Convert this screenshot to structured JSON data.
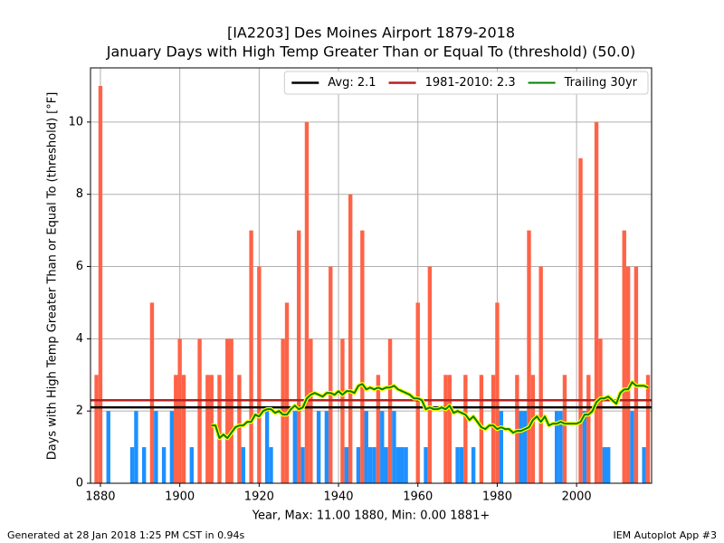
{
  "chart_data": {
    "type": "bar",
    "title": "[IA2203] Des Moines Airport 1879-2018",
    "subtitle": "January Days with High Temp Greater Than or Equal To (threshold) (50.0)",
    "x_label": "Year, Max: 11.00 1880, Min: 0.00 1881+",
    "y_label": "Days with High Temp Greater Than or Equal To (threshold) [°F]",
    "footer_left": "Generated at 28 Jan 2018 1:25 PM CST in 0.94s",
    "footer_right": "IEM Autoplot App #3",
    "x": [
      1879,
      1880,
      1881,
      1882,
      1883,
      1884,
      1885,
      1886,
      1887,
      1888,
      1889,
      1890,
      1891,
      1892,
      1893,
      1894,
      1895,
      1896,
      1897,
      1898,
      1899,
      1900,
      1901,
      1902,
      1903,
      1904,
      1905,
      1906,
      1907,
      1908,
      1909,
      1910,
      1911,
      1912,
      1913,
      1914,
      1915,
      1916,
      1917,
      1918,
      1919,
      1920,
      1921,
      1922,
      1923,
      1924,
      1925,
      1926,
      1927,
      1928,
      1929,
      1930,
      1931,
      1932,
      1933,
      1934,
      1935,
      1936,
      1937,
      1938,
      1939,
      1940,
      1941,
      1942,
      1943,
      1944,
      1945,
      1946,
      1947,
      1948,
      1949,
      1950,
      1951,
      1952,
      1953,
      1954,
      1955,
      1956,
      1957,
      1958,
      1959,
      1960,
      1961,
      1962,
      1963,
      1964,
      1965,
      1966,
      1967,
      1968,
      1969,
      1970,
      1971,
      1972,
      1973,
      1974,
      1975,
      1976,
      1977,
      1978,
      1979,
      1980,
      1981,
      1982,
      1983,
      1984,
      1985,
      1986,
      1987,
      1988,
      1989,
      1990,
      1991,
      1992,
      1993,
      1994,
      1995,
      1996,
      1997,
      1998,
      1999,
      2000,
      2001,
      2002,
      2003,
      2004,
      2005,
      2006,
      2007,
      2008,
      2009,
      2010,
      2011,
      2012,
      2013,
      2014,
      2015,
      2016,
      2017,
      2018
    ],
    "values": [
      3,
      11,
      0,
      2,
      0,
      0,
      0,
      0,
      0,
      1,
      2,
      0,
      1,
      0,
      5,
      2,
      0,
      1,
      0,
      2,
      3,
      4,
      3,
      0,
      1,
      0,
      4,
      0,
      3,
      3,
      0,
      3,
      0,
      4,
      4,
      0,
      3,
      1,
      0,
      7,
      0,
      6,
      0,
      2,
      1,
      0,
      0,
      4,
      5,
      0,
      2,
      7,
      1,
      10,
      4,
      0,
      2,
      0,
      2,
      6,
      0,
      0,
      4,
      1,
      8,
      0,
      1,
      7,
      2,
      1,
      1,
      3,
      2,
      1,
      4,
      2,
      1,
      1,
      1,
      0,
      0,
      5,
      0,
      1,
      6,
      0,
      0,
      0,
      3,
      3,
      0,
      1,
      1,
      3,
      0,
      1,
      0,
      3,
      0,
      0,
      3,
      5,
      2,
      0,
      0,
      0,
      3,
      2,
      2,
      7,
      3,
      0,
      6,
      0,
      0,
      0,
      2,
      2,
      3,
      0,
      0,
      0,
      9,
      2,
      3,
      0,
      10,
      4,
      1,
      1,
      0,
      0,
      0,
      7,
      6,
      2,
      6,
      0,
      1,
      3
    ],
    "color_above": "#ff6347",
    "color_below": "#1e90ff",
    "reference_lines": [
      {
        "name": "Avg: 2.1",
        "value": 2.1,
        "color": "#000000"
      },
      {
        "name": "1981-2010: 2.3",
        "value": 2.3,
        "color": "#b22222"
      }
    ],
    "series": [
      {
        "name": "Trailing 30yr",
        "color": "#008000",
        "outline": "#ffff00",
        "values": [
          null,
          null,
          null,
          null,
          null,
          null,
          null,
          null,
          null,
          null,
          null,
          null,
          null,
          null,
          null,
          null,
          null,
          null,
          null,
          null,
          null,
          null,
          null,
          null,
          null,
          null,
          null,
          null,
          null,
          1.6,
          1.6,
          1.25,
          1.35,
          1.25,
          1.4,
          1.55,
          1.6,
          1.6,
          1.7,
          1.7,
          1.9,
          1.85,
          2.0,
          2.05,
          2.05,
          1.95,
          2.0,
          1.9,
          1.9,
          2.05,
          2.15,
          2.05,
          2.1,
          2.35,
          2.45,
          2.5,
          2.45,
          2.4,
          2.5,
          2.5,
          2.45,
          2.55,
          2.45,
          2.55,
          2.55,
          2.5,
          2.7,
          2.75,
          2.6,
          2.65,
          2.6,
          2.65,
          2.6,
          2.65,
          2.65,
          2.7,
          2.6,
          2.55,
          2.5,
          2.45,
          2.35,
          2.35,
          2.3,
          2.05,
          2.1,
          2.05,
          2.05,
          2.1,
          2.05,
          2.15,
          1.95,
          2.0,
          1.95,
          1.9,
          1.75,
          1.85,
          1.7,
          1.55,
          1.5,
          1.6,
          1.6,
          1.5,
          1.55,
          1.5,
          1.5,
          1.4,
          1.45,
          1.45,
          1.5,
          1.55,
          1.75,
          1.85,
          1.7,
          1.85,
          1.6,
          1.65,
          1.65,
          1.7,
          1.65,
          1.65,
          1.65,
          1.65,
          1.7,
          1.9,
          1.9,
          2.0,
          2.25,
          2.35,
          2.35,
          2.4,
          2.3,
          2.2,
          2.5,
          2.6,
          2.6,
          2.8,
          2.7,
          2.7,
          2.7,
          2.65
        ]
      }
    ],
    "xlim": [
      1877.5,
      2018.9
    ],
    "xticks": [
      1880,
      1900,
      1920,
      1940,
      1960,
      1980,
      2000
    ],
    "ylim": [
      0,
      11.5
    ],
    "yticks": [
      0,
      2,
      4,
      6,
      8,
      10
    ],
    "grid": true,
    "legend": "upper right"
  }
}
